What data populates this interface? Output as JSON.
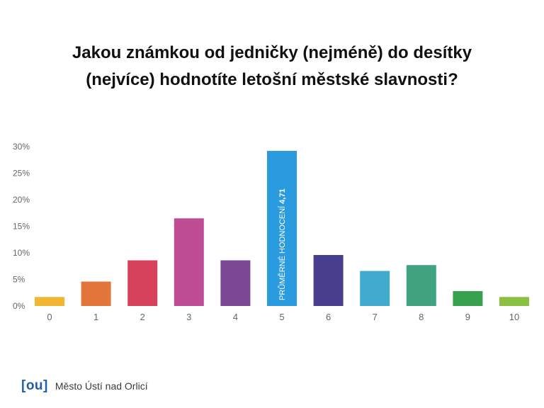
{
  "chart_data": {
    "type": "bar",
    "title_lines": [
      "Jakou známkou od jedničky (nejméně) do desítky",
      "(nejvíce) hodnotíte letošní městské slavnosti?"
    ],
    "categories": [
      "0",
      "1",
      "2",
      "3",
      "4",
      "5",
      "6",
      "7",
      "8",
      "9",
      "10"
    ],
    "values": [
      1.7,
      4.6,
      8.6,
      16.5,
      8.6,
      29.2,
      9.6,
      6.6,
      7.7,
      2.8,
      1.7
    ],
    "colors": [
      "#f2b632",
      "#e3743a",
      "#d6425b",
      "#be4d96",
      "#7a4894",
      "#2b9be0",
      "#473f8e",
      "#41abcf",
      "#3fa37f",
      "#37a24d",
      "#8cc043"
    ],
    "y_ticks": [
      "0%",
      "5%",
      "10%",
      "15%",
      "20%",
      "25%",
      "30%"
    ],
    "ylim": [
      0,
      30
    ],
    "annotation": {
      "bar_index": 5,
      "label": "PRŮMĚRNÉ HODNOCENÍ",
      "value": "4,71"
    },
    "grid": false
  },
  "footer": {
    "logo_mark": "[ou]",
    "org_name": "Město Ústí nad Orlicí"
  }
}
